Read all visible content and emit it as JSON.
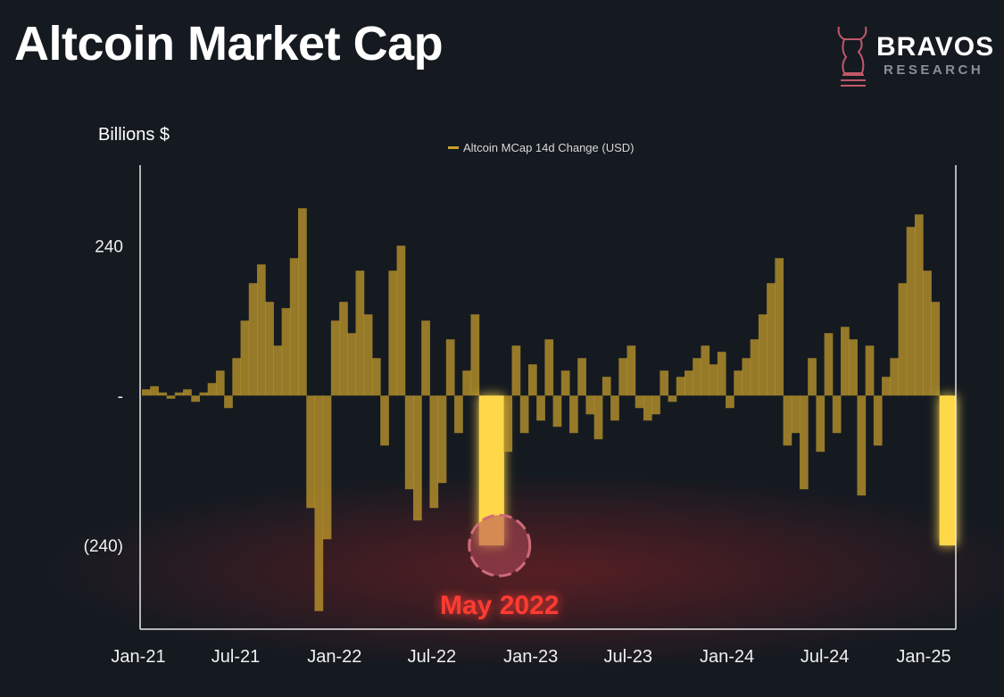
{
  "header": {
    "title": "Altcoin Market Cap",
    "logo": {
      "brand": "BRAVOS",
      "sub": "RESEARCH",
      "icon": "bull-knight-icon"
    }
  },
  "colors": {
    "background": "#151a21",
    "bar": "#c9a02c",
    "highlight": "#ffd84a",
    "threshold": "#ff3b3b",
    "annotation": "#ff3b30"
  },
  "chart_data": {
    "type": "bar",
    "title": "",
    "ylabel": "Billions $",
    "xlabel": "",
    "legend": {
      "label": "Altcoin MCap 14d Change (USD)",
      "position": "top-center"
    },
    "ylim": [
      -374,
      369
    ],
    "yticks": [
      {
        "value": 240,
        "label": "240"
      },
      {
        "value": 0,
        "label": "-"
      },
      {
        "value": -240,
        "label": "(240)"
      }
    ],
    "xticks": [
      {
        "date": "2021-01-01",
        "label": "Jan-21"
      },
      {
        "date": "2021-07-01",
        "label": "Jul-21"
      },
      {
        "date": "2022-01-01",
        "label": "Jan-22"
      },
      {
        "date": "2022-07-01",
        "label": "Jul-22"
      },
      {
        "date": "2023-01-01",
        "label": "Jan-23"
      },
      {
        "date": "2023-07-01",
        "label": "Jul-23"
      },
      {
        "date": "2024-01-01",
        "label": "Jan-24"
      },
      {
        "date": "2024-07-01",
        "label": "Jul-24"
      },
      {
        "date": "2025-01-01",
        "label": "Jan-25"
      }
    ],
    "grid": false,
    "threshold": {
      "value": -240,
      "style": "dashed"
    },
    "annotation": {
      "label": "May 2022",
      "value": -240,
      "index": 43
    },
    "highlight_indices": [
      41,
      42,
      43,
      97,
      98
    ],
    "values": [
      10,
      15,
      5,
      -5,
      5,
      10,
      -10,
      5,
      20,
      40,
      -20,
      60,
      120,
      180,
      210,
      150,
      80,
      140,
      220,
      300,
      -180,
      -345,
      -230,
      120,
      150,
      100,
      200,
      130,
      60,
      -80,
      200,
      240,
      -150,
      -200,
      120,
      -180,
      -140,
      90,
      -60,
      40,
      130,
      -240,
      -240,
      -240,
      -90,
      80,
      -60,
      50,
      -40,
      90,
      -50,
      40,
      -60,
      60,
      -30,
      -70,
      30,
      -40,
      60,
      80,
      -20,
      -40,
      -30,
      40,
      -10,
      30,
      40,
      60,
      80,
      50,
      70,
      -20,
      40,
      60,
      90,
      130,
      180,
      220,
      -80,
      -60,
      -150,
      60,
      -90,
      100,
      -60,
      110,
      90,
      -160,
      80,
      -80,
      30,
      60,
      180,
      270,
      290,
      200,
      150,
      -240,
      -240
    ]
  }
}
